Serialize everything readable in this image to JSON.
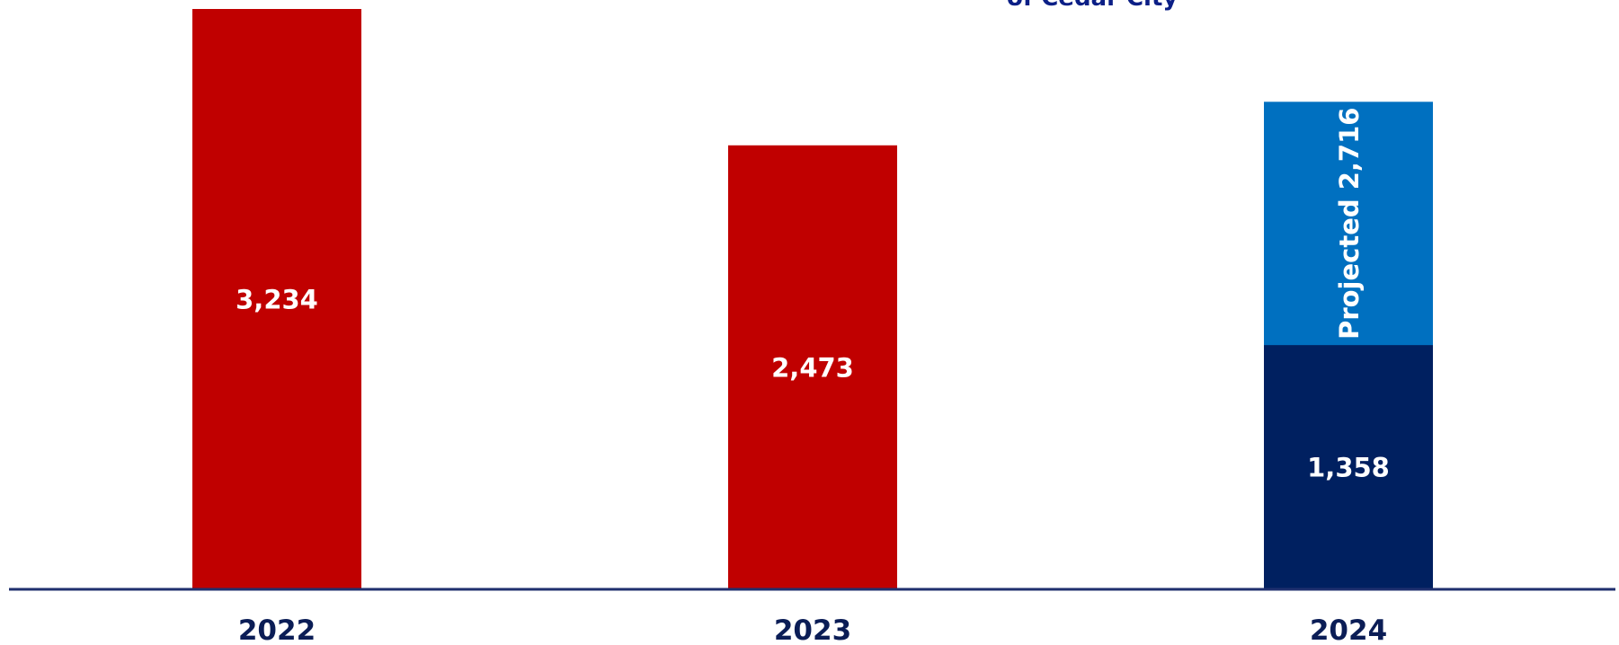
{
  "chart_data": {
    "type": "bar",
    "title_fragment": "of Cedar City",
    "categories": [
      "2022",
      "2023",
      "2024"
    ],
    "series": [
      {
        "name": "",
        "values": [
          3234,
          2473,
          1358
        ]
      },
      {
        "name": "",
        "values": [
          null,
          null,
          1358
        ]
      }
    ],
    "data_labels": [
      "3,234",
      "2,473",
      "1,358"
    ],
    "projected_label": "Projected 2,716",
    "projected_total": 2716,
    "colors": {
      "actual": "#c00000",
      "current": "#002060",
      "projected": "#0070c0",
      "axis": "#1f2f6e",
      "label_text": "#ffffff",
      "tick_text": "#0b1d56"
    },
    "ylim": [
      0,
      3234
    ],
    "grid": false,
    "legend": "none"
  }
}
